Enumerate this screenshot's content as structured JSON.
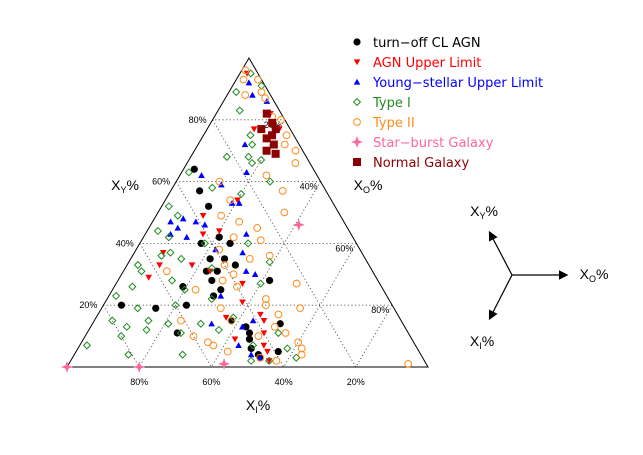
{
  "chart_data": {
    "type": "scatter",
    "subtype": "ternary",
    "title": "",
    "grid": true,
    "grid_step": 20,
    "legend_position": "top-right",
    "axes": {
      "Y": {
        "label_main": "X",
        "label_sub": "Y",
        "label_suffix": "%",
        "ticks": [
          "20%",
          "40%",
          "60%",
          "80%"
        ]
      },
      "O": {
        "label_main": "X",
        "label_sub": "O",
        "label_suffix": "%",
        "ticks": [
          "20%",
          "40%",
          "60%",
          "80%"
        ]
      },
      "I": {
        "label_main": "X",
        "label_sub": "I",
        "label_suffix": "%",
        "ticks": [
          "20%",
          "40%",
          "60%",
          "80%"
        ]
      }
    },
    "direction_key": {
      "Y": {
        "label_main": "X",
        "label_sub": "Y",
        "label_suffix": "%"
      },
      "O": {
        "label_main": "X",
        "label_sub": "O",
        "label_suffix": "%"
      },
      "I": {
        "label_main": "X",
        "label_sub": "I",
        "label_suffix": "%"
      }
    },
    "series": [
      {
        "name": "turn−off CL AGN",
        "marker": "filled-circle",
        "color": "#000000",
        "points": [
          [
            11,
            25,
            64
          ],
          [
            20,
            5,
            75
          ],
          [
            19,
            15,
            66
          ],
          [
            26,
            19,
            55
          ],
          [
            20,
            23,
            57
          ],
          [
            6,
            48,
            46
          ],
          [
            14,
            52,
            34
          ],
          [
            33,
            30,
            37
          ],
          [
            64,
            3,
            33
          ],
          [
            57,
            8,
            35
          ],
          [
            52,
            13,
            35
          ],
          [
            42,
            21,
            37
          ],
          [
            40,
            17,
            43
          ],
          [
            35,
            26,
            39
          ],
          [
            35,
            22,
            43
          ],
          [
            31,
            26,
            43
          ],
          [
            31,
            23,
            46
          ],
          [
            28,
            26,
            46
          ],
          [
            25,
            30,
            45
          ],
          [
            23,
            29,
            48
          ],
          [
            13,
            43,
            44
          ],
          [
            11,
            45,
            44
          ],
          [
            9,
            46,
            45
          ],
          [
            4,
            51,
            45
          ],
          [
            5,
            56,
            39
          ],
          [
            3,
            52,
            45
          ],
          [
            40,
            25,
            35
          ],
          [
            15,
            38,
            47
          ],
          [
            28,
            42,
            30
          ]
        ]
      },
      {
        "name": "AGN Upper Limit",
        "marker": "triangle-down",
        "color": "#ff0000",
        "points": [
          [
            95,
            2,
            3
          ],
          [
            82,
            15,
            3
          ],
          [
            77,
            20,
            3
          ],
          [
            77,
            13,
            10
          ],
          [
            54,
            20,
            26
          ],
          [
            49,
            13,
            38
          ],
          [
            44,
            20,
            36
          ],
          [
            43,
            16,
            41
          ],
          [
            37,
            8,
            55
          ],
          [
            33,
            18,
            49
          ],
          [
            33,
            9,
            58
          ],
          [
            31,
            24,
            45
          ],
          [
            29,
            8,
            63
          ],
          [
            27,
            35,
            38
          ],
          [
            21,
            38,
            41
          ],
          [
            16,
            36,
            48
          ],
          [
            17,
            45,
            38
          ],
          [
            15,
            47,
            38
          ],
          [
            11,
            49,
            40
          ],
          [
            7,
            51,
            42
          ],
          [
            5,
            53,
            42
          ],
          [
            2,
            55,
            43
          ],
          [
            9,
            42,
            49
          ]
        ]
      },
      {
        "name": "Young−stellar Upper Limit",
        "marker": "triangle-up",
        "color": "#0000ff",
        "points": [
          [
            92,
            4,
            4
          ],
          [
            88,
            7,
            5
          ],
          [
            86,
            12,
            2
          ],
          [
            72,
            13,
            15
          ],
          [
            62,
            6,
            32
          ],
          [
            63,
            18,
            19
          ],
          [
            59,
            13,
            28
          ],
          [
            53,
            19,
            28
          ],
          [
            53,
            21,
            26
          ],
          [
            47,
            12,
            41
          ],
          [
            43,
            28,
            29
          ],
          [
            47,
            5,
            48
          ],
          [
            43,
            7,
            50
          ],
          [
            45,
            8,
            47
          ],
          [
            42,
            12,
            46
          ],
          [
            46,
            15,
            39
          ],
          [
            37,
            30,
            33
          ],
          [
            31,
            34,
            35
          ],
          [
            30,
            37,
            33
          ],
          [
            23,
            31,
            46
          ],
          [
            15,
            44,
            41
          ],
          [
            13,
            42,
            45
          ],
          [
            14,
            33,
            53
          ],
          [
            7,
            44,
            49
          ],
          [
            4,
            49,
            47
          ],
          [
            3,
            52,
            45
          ],
          [
            48,
            8,
            44
          ],
          [
            38,
            22,
            40
          ]
        ]
      },
      {
        "name": "Type I",
        "marker": "open-diamond",
        "color": "#228b22",
        "points": [
          [
            95,
            3,
            2
          ],
          [
            91,
            8,
            1
          ],
          [
            89,
            2,
            9
          ],
          [
            83,
            6,
            11
          ],
          [
            75,
            13,
            12
          ],
          [
            72,
            15,
            13
          ],
          [
            68,
            16,
            16
          ],
          [
            67,
            20,
            13
          ],
          [
            66,
            18,
            16
          ],
          [
            63,
            2,
            35
          ],
          [
            60,
            26,
            14
          ],
          [
            52,
            2,
            46
          ],
          [
            49,
            6,
            45
          ],
          [
            44,
            3,
            53
          ],
          [
            40,
            30,
            30
          ],
          [
            36,
            8,
            56
          ],
          [
            37,
            10,
            53
          ],
          [
            35,
            14,
            51
          ],
          [
            32,
            24,
            44
          ],
          [
            34,
            39,
            27
          ],
          [
            33,
            3,
            64
          ],
          [
            31,
            5,
            64
          ],
          [
            26,
            5,
            69
          ],
          [
            25,
            20,
            55
          ],
          [
            27,
            40,
            33
          ],
          [
            22,
            29,
            49
          ],
          [
            23,
            2,
            75
          ],
          [
            19,
            10,
            71
          ],
          [
            16,
            38,
            46
          ],
          [
            15,
            5,
            80
          ],
          [
            13,
            10,
            77
          ],
          [
            12,
            36,
            52
          ],
          [
            11,
            53,
            36
          ],
          [
            11,
            26,
            63
          ],
          [
            7,
            2,
            91
          ],
          [
            7,
            48,
            45
          ],
          [
            6,
            58,
            36
          ],
          [
            4,
            30,
            66
          ],
          [
            4,
            15,
            81
          ],
          [
            3,
            62,
            35
          ],
          [
            2,
            50,
            48
          ],
          [
            2,
            55,
            43
          ],
          [
            68,
            10,
            22
          ],
          [
            56,
            20,
            24
          ],
          [
            58,
            11,
            31
          ],
          [
            42,
            7,
            51
          ],
          [
            40,
            18,
            42
          ],
          [
            20,
            20,
            60
          ],
          [
            15,
            15,
            70
          ],
          [
            10,
            10,
            80
          ],
          [
            28,
            15,
            57
          ],
          [
            14,
            30,
            56
          ],
          [
            14,
            21,
            65
          ],
          [
            12,
            16,
            72
          ]
        ]
      },
      {
        "name": "Type II",
        "marker": "open-circle",
        "color": "#ff8c1a",
        "points": [
          [
            96,
            1,
            3
          ],
          [
            93,
            6,
            1
          ],
          [
            93,
            2,
            5
          ],
          [
            89,
            9,
            2
          ],
          [
            87,
            11,
            2
          ],
          [
            81,
            16,
            3
          ],
          [
            80,
            19,
            1
          ],
          [
            77,
            19,
            4
          ],
          [
            75,
            23,
            2
          ],
          [
            72,
            24,
            4
          ],
          [
            70,
            28,
            2
          ],
          [
            66,
            30,
            4
          ],
          [
            62,
            24,
            14
          ],
          [
            57,
            31,
            12
          ],
          [
            50,
            35,
            15
          ],
          [
            54,
            18,
            28
          ],
          [
            49,
            18,
            33
          ],
          [
            47,
            24,
            29
          ],
          [
            45,
            30,
            25
          ],
          [
            41,
            33,
            26
          ],
          [
            38,
            23,
            39
          ],
          [
            36,
            38,
            26
          ],
          [
            33,
            27,
            40
          ],
          [
            31,
            12,
            57
          ],
          [
            30,
            31,
            39
          ],
          [
            28,
            29,
            43
          ],
          [
            26,
            34,
            40
          ],
          [
            25,
            23,
            52
          ],
          [
            19,
            55,
            26
          ],
          [
            17,
            50,
            33
          ],
          [
            15,
            24,
            61
          ],
          [
            11,
            55,
            34
          ],
          [
            10,
            48,
            42
          ],
          [
            8,
            60,
            32
          ],
          [
            7,
            37,
            56
          ],
          [
            5,
            42,
            53
          ],
          [
            4,
            63,
            33
          ],
          [
            3,
            52,
            45
          ],
          [
            19,
            33,
            48
          ],
          [
            13,
            51,
            36
          ],
          [
            1,
            94,
            5
          ],
          [
            6,
            62,
            32
          ],
          [
            2,
            57,
            41
          ],
          [
            88,
            5,
            7
          ],
          [
            60,
            12,
            28
          ],
          [
            42,
            25,
            33
          ],
          [
            20,
            45,
            35
          ],
          [
            15,
            38,
            47
          ],
          [
            10,
            30,
            60
          ],
          [
            8,
            35,
            57
          ],
          [
            22,
            44,
            34
          ],
          [
            27,
            50,
            23
          ],
          [
            35,
            33,
            32
          ]
        ]
      },
      {
        "name": "Star−burst Galaxy",
        "marker": "star",
        "color": "#ff6699",
        "points": [
          [
            0,
            0,
            100
          ],
          [
            0,
            20,
            80
          ],
          [
            1,
            43,
            56
          ],
          [
            46,
            41,
            13
          ]
        ]
      },
      {
        "name": "Normal Galaxy",
        "marker": "filled-square",
        "color": "#8b0000",
        "points": [
          [
            82,
            14,
            4
          ],
          [
            79,
            17,
            4
          ],
          [
            77,
            15,
            8
          ],
          [
            75,
            19,
            6
          ],
          [
            74,
            18,
            8
          ],
          [
            72,
            21,
            7
          ],
          [
            70,
            20,
            10
          ],
          [
            69,
            23,
            8
          ],
          [
            77,
            19,
            4
          ]
        ]
      }
    ]
  }
}
